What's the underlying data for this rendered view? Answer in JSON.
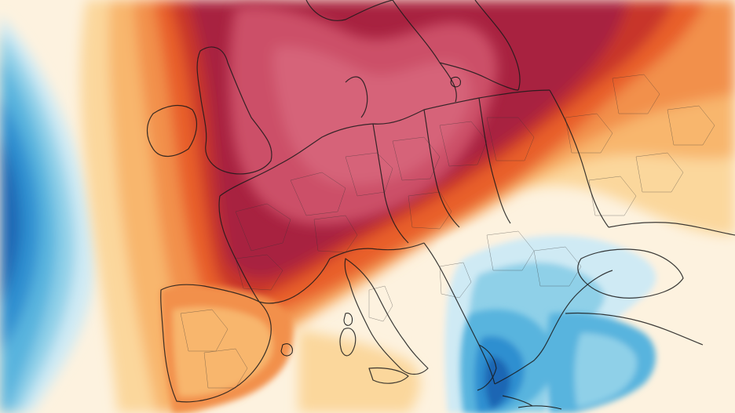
{
  "map": {
    "type": "temperature-anomaly-heatmap",
    "region": "Europe",
    "legend": null,
    "title": "",
    "colors": {
      "extreme_warm": "#cc5068",
      "very_warm": "#a82340",
      "warm_strong": "#c8342c",
      "warm": "#e85e2a",
      "warm_mid": "#f2904c",
      "mild_warm": "#f8b66d",
      "slight_warm": "#fbd79c",
      "neutral": "#fdf2df",
      "neutral_white": "#ffffff",
      "slight_cool": "#cfeaf4",
      "cool": "#8fd0e8",
      "cool_mid": "#58b4de",
      "cold": "#2f8fd0",
      "very_cold": "#1e66b4",
      "border_line": "#1a1a1a"
    },
    "anomaly_zones": [
      {
        "label": "atlantic-cold-anomaly",
        "level": "very_cold"
      },
      {
        "label": "central-europe-heat-dome",
        "level": "extreme_warm"
      },
      {
        "label": "balkans-cool-anomaly",
        "level": "cold"
      },
      {
        "label": "aegean-cool-anomaly",
        "level": "very_cold"
      },
      {
        "label": "iberia-warm-anomaly",
        "level": "warm"
      }
    ]
  }
}
